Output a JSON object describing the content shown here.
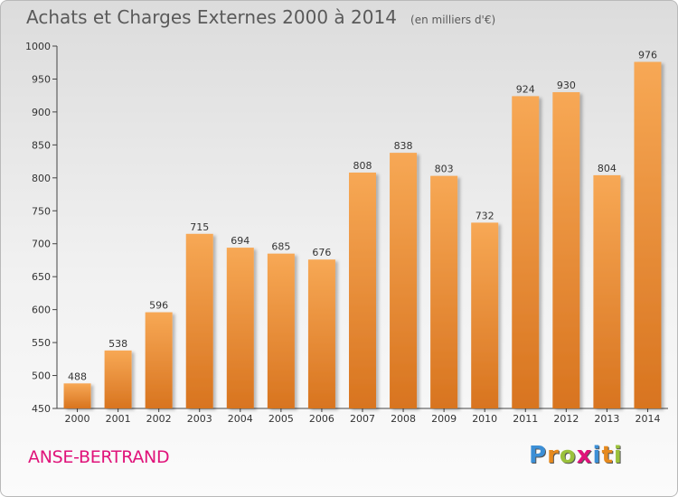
{
  "title": "Achats et Charges Externes 2000 à 2014",
  "unit": "(en milliers d'€)",
  "place": "ANSE-BERTRAND",
  "logo": {
    "letters": [
      "P",
      "r",
      "o",
      "x",
      "i",
      "t",
      "i"
    ],
    "colors": [
      "#3c8fd6",
      "#e68a1e",
      "#9bc23c",
      "#e0137a",
      "#3c8fd6",
      "#e68a1e",
      "#9bc23c"
    ]
  },
  "colors": {
    "bar_light": "#f7a855",
    "bar_dark": "#d8741f",
    "place": "#e0137a"
  },
  "chart_data": {
    "type": "bar",
    "title": "Achats et Charges Externes 2000 à 2014",
    "xlabel": "",
    "ylabel": "",
    "categories": [
      "2000",
      "2001",
      "2002",
      "2003",
      "2004",
      "2005",
      "2006",
      "2007",
      "2008",
      "2009",
      "2010",
      "2011",
      "2012",
      "2013",
      "2014"
    ],
    "values": [
      488,
      538,
      596,
      715,
      694,
      685,
      676,
      808,
      838,
      803,
      732,
      924,
      930,
      804,
      976
    ],
    "ylim": [
      450,
      1000
    ],
    "yticks": [
      450,
      500,
      550,
      600,
      650,
      700,
      750,
      800,
      850,
      900,
      950,
      1000
    ],
    "grid": false,
    "legend": "none"
  }
}
